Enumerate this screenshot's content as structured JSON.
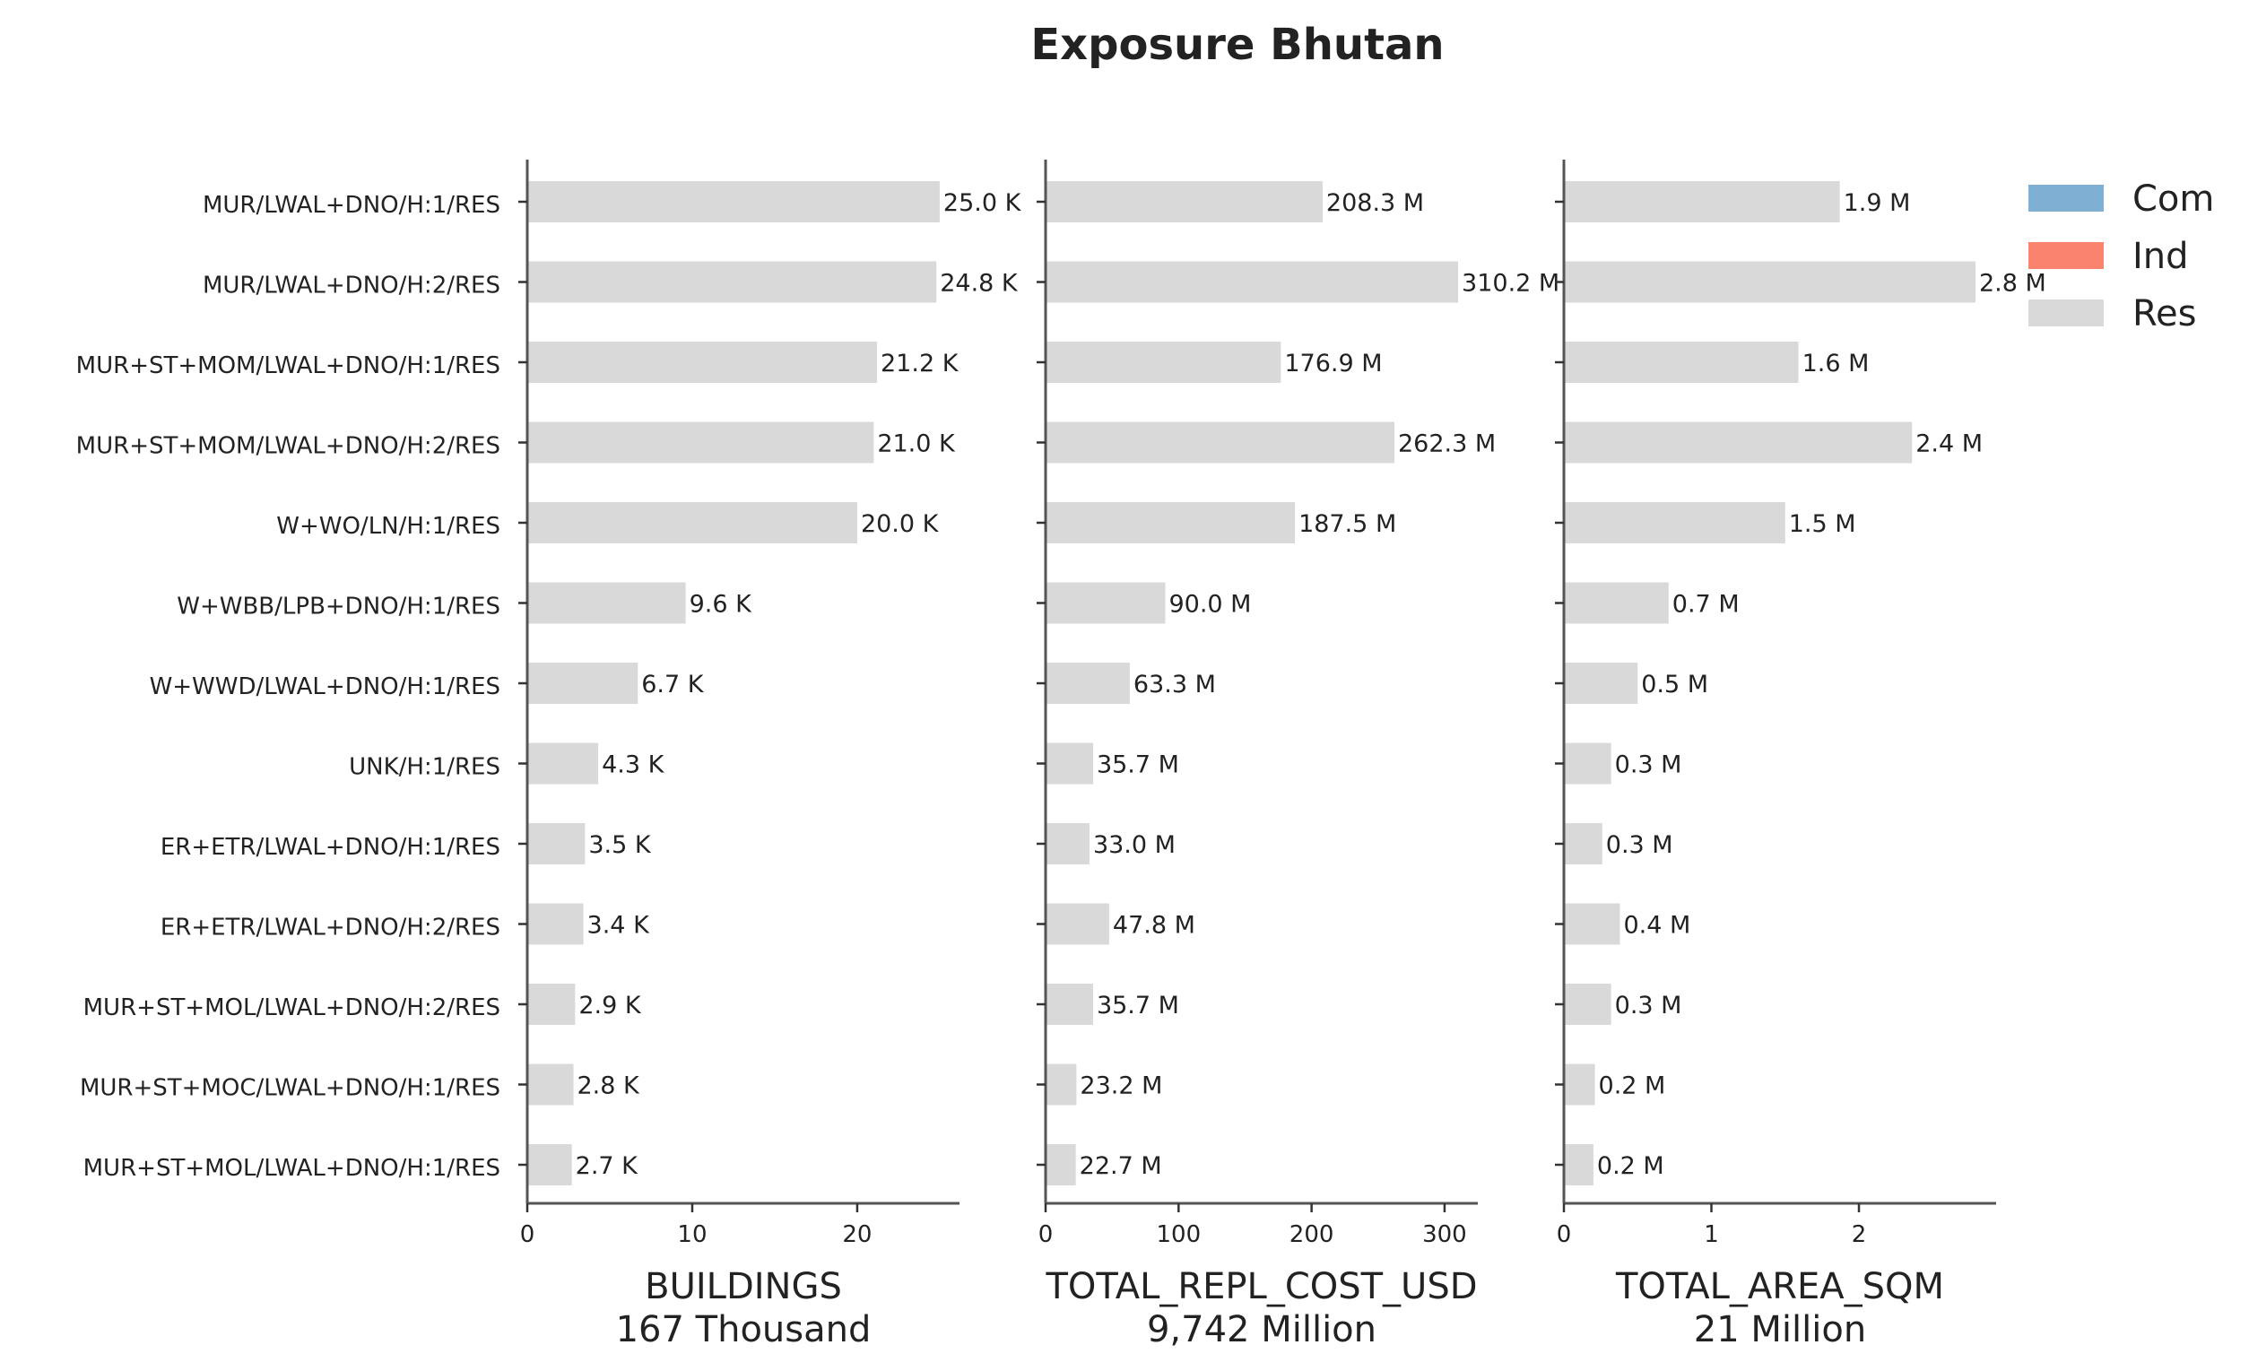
{
  "chart_data": {
    "type": "bar",
    "orientation": "horizontal",
    "title": "Exposure Bhutan",
    "categories": [
      "MUR/LWAL+DNO/H:1/RES",
      "MUR/LWAL+DNO/H:2/RES",
      "MUR+ST+MOM/LWAL+DNO/H:1/RES",
      "MUR+ST+MOM/LWAL+DNO/H:2/RES",
      "W+WO/LN/H:1/RES",
      "W+WBB/LPB+DNO/H:1/RES",
      "W+WWD/LWAL+DNO/H:1/RES",
      "UNK/H:1/RES",
      "ER+ETR/LWAL+DNO/H:1/RES",
      "ER+ETR/LWAL+DNO/H:2/RES",
      "MUR+ST+MOL/LWAL+DNO/H:2/RES",
      "MUR+ST+MOC/LWAL+DNO/H:1/RES",
      "MUR+ST+MOL/LWAL+DNO/H:1/RES"
    ],
    "legend": {
      "position": "top-right",
      "entries": [
        {
          "name": "Com",
          "color": "#7fb0d4"
        },
        {
          "name": "Ind",
          "color": "#f9836f"
        },
        {
          "name": "Res",
          "color": "#d9d9d9"
        }
      ]
    },
    "bar_color": "#d9d9d9",
    "grid": false,
    "panels": [
      {
        "xlabel": "BUILDINGS",
        "xlabel_sub": "167 Thousand",
        "xlim": [
          0,
          26.2
        ],
        "xticks": [
          0,
          10,
          20
        ],
        "values": [
          25.0,
          24.8,
          21.2,
          21.0,
          20.0,
          9.6,
          6.7,
          4.3,
          3.5,
          3.4,
          2.9,
          2.8,
          2.7
        ],
        "value_labels": [
          "25.0 K",
          "24.8 K",
          "21.2 K",
          "21.0 K",
          "20.0 K",
          "9.6 K",
          "6.7 K",
          "4.3 K",
          "3.5 K",
          "3.4 K",
          "2.9 K",
          "2.8 K",
          "2.7 K"
        ],
        "show_category_labels": true
      },
      {
        "xlabel": "TOTAL_REPL_COST_USD",
        "xlabel_sub": "9,742 Million",
        "xlim": [
          0,
          325
        ],
        "xticks": [
          0,
          100,
          200,
          300
        ],
        "values": [
          208.3,
          310.2,
          176.9,
          262.3,
          187.5,
          90.0,
          63.3,
          35.7,
          33.0,
          47.8,
          35.7,
          23.2,
          22.7
        ],
        "value_labels": [
          "208.3 M",
          "310.2 M",
          "176.9 M",
          "262.3 M",
          "187.5 M",
          "90.0 M",
          "63.3 M",
          "35.7 M",
          "33.0 M",
          "47.8 M",
          "35.7 M",
          "23.2 M",
          "22.7 M"
        ],
        "show_category_labels": false
      },
      {
        "xlabel": "TOTAL_AREA_SQM",
        "xlabel_sub": "21 Million",
        "xlim": [
          0,
          2.93
        ],
        "xticks": [
          0,
          1,
          2
        ],
        "values": [
          1.87,
          2.79,
          1.59,
          2.36,
          1.5,
          0.71,
          0.5,
          0.32,
          0.26,
          0.38,
          0.32,
          0.21,
          0.2
        ],
        "value_labels": [
          "1.9 M",
          "2.8 M",
          "1.6 M",
          "2.4 M",
          "1.5 M",
          "0.7 M",
          "0.5 M",
          "0.3 M",
          "0.3 M",
          "0.4 M",
          "0.3 M",
          "0.2 M",
          "0.2 M"
        ],
        "show_category_labels": false
      }
    ]
  }
}
